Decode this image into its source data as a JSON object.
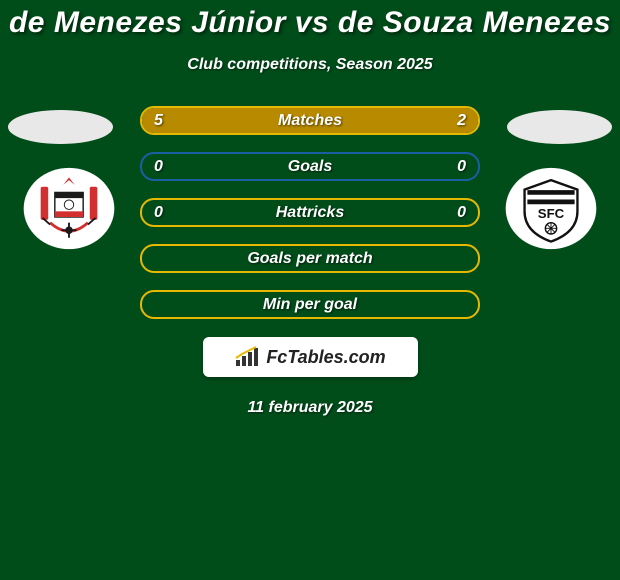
{
  "title": "de Menezes Júnior vs de Souza Menezes",
  "subtitle": "Club competitions, Season 2025",
  "date": "11 february 2025",
  "brand": "FcTables.com",
  "colors": {
    "background": "#004d1a",
    "fill": "#b88a00",
    "border_gold": "#e6b800",
    "border_blue": "#1b5fa3",
    "ellipse": "#e8e8e8",
    "text": "#ffffff",
    "brand_bg": "#ffffff",
    "brand_text": "#222222"
  },
  "club_left": {
    "name": "Corinthians",
    "shield_bg": "#ffffff",
    "accent1": "#d32f2f",
    "accent2": "#1a1a1a"
  },
  "club_right": {
    "name": "Santos FC",
    "shield_bg": "#ffffff",
    "accent1": "#111111"
  },
  "bars": [
    {
      "label": "Matches",
      "left_val": "5",
      "right_val": "2",
      "left_pct": 71,
      "right_pct": 29,
      "show_vals": true,
      "border": "#e6b800"
    },
    {
      "label": "Goals",
      "left_val": "0",
      "right_val": "0",
      "left_pct": 0,
      "right_pct": 0,
      "show_vals": true,
      "border": "#1b5fa3"
    },
    {
      "label": "Hattricks",
      "left_val": "0",
      "right_val": "0",
      "left_pct": 0,
      "right_pct": 0,
      "show_vals": true,
      "border": "#e6b800"
    },
    {
      "label": "Goals per match",
      "left_val": "",
      "right_val": "",
      "left_pct": 0,
      "right_pct": 0,
      "show_vals": false,
      "border": "#e6b800"
    },
    {
      "label": "Min per goal",
      "left_val": "",
      "right_val": "",
      "left_pct": 0,
      "right_pct": 0,
      "show_vals": false,
      "border": "#e6b800"
    }
  ]
}
